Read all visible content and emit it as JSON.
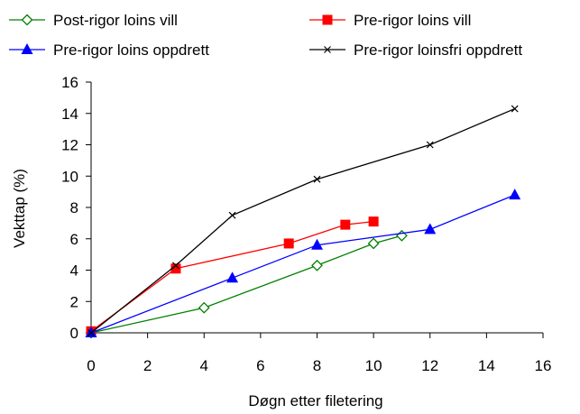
{
  "chart_data": {
    "type": "line",
    "xlabel": "Døgn etter filetering",
    "ylabel": "Vekttap (%)",
    "xlim": [
      0,
      16
    ],
    "ylim": [
      0,
      16
    ],
    "xticks": [
      "0",
      "2",
      "4",
      "6",
      "8",
      "10",
      "12",
      "14",
      "16"
    ],
    "yticks": [
      "0",
      "2",
      "4",
      "6",
      "8",
      "10",
      "12",
      "14",
      "16"
    ],
    "grid": false,
    "legend_position": "top",
    "series": [
      {
        "name": "Post-rigor loins vill",
        "color": "#008000",
        "marker": "diamond-open",
        "x": [
          0,
          4,
          8,
          10,
          11
        ],
        "y": [
          0,
          1.6,
          4.3,
          5.7,
          6.2
        ]
      },
      {
        "name": "Pre-rigor loins vill",
        "color": "#ff0000",
        "marker": "square",
        "x": [
          0,
          3,
          7,
          9,
          10
        ],
        "y": [
          0.1,
          4.1,
          5.7,
          6.9,
          7.1
        ]
      },
      {
        "name": "Pre-rigor loins oppdrett",
        "color": "#0000ff",
        "marker": "triangle",
        "x": [
          0,
          5,
          8,
          12,
          15
        ],
        "y": [
          0,
          3.5,
          5.6,
          6.6,
          8.8
        ]
      },
      {
        "name": "Pre-rigor loinsfri oppdrett",
        "color": "#000000",
        "marker": "x",
        "x": [
          0,
          3,
          5,
          8,
          12,
          15
        ],
        "y": [
          0,
          4.3,
          7.5,
          9.8,
          12.0,
          14.3
        ]
      }
    ]
  }
}
